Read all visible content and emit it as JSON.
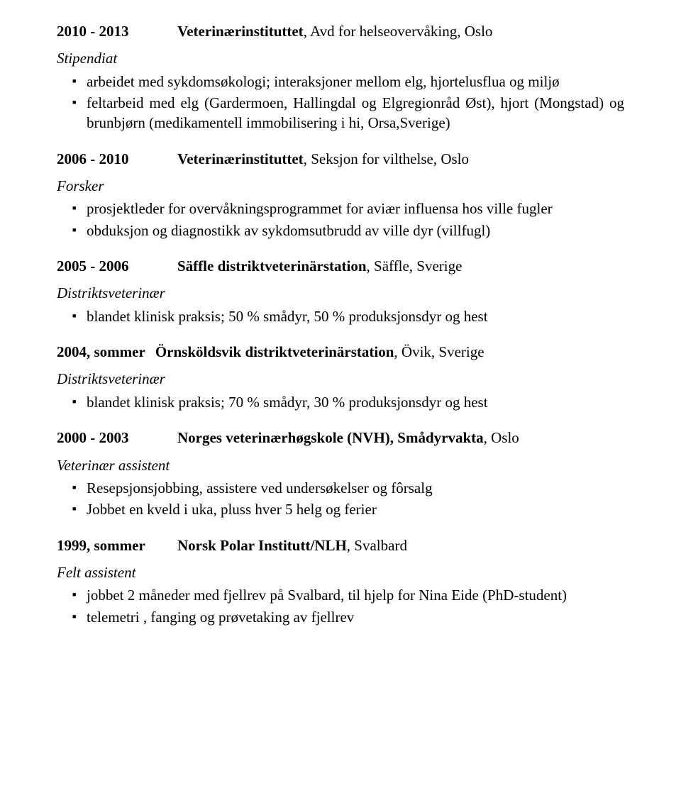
{
  "entries": [
    {
      "date": "2010 - 2013",
      "org_bold": "Veterinærinstituttet",
      "org_rest": ", Avd for helseovervåking, Oslo",
      "role": "Stipendiat",
      "bullets": [
        "arbeidet med sykdomsøkologi; interaksjoner mellom elg, hjortelusflua og miljø",
        "feltarbeid med elg (Gardermoen, Hallingdal og Elgregionråd Øst), hjort (Mongstad) og brunbjørn (medikamentell immobilisering i hi, Orsa,Sverige)"
      ]
    },
    {
      "date": "2006 - 2010",
      "org_bold": "Veterinærinstituttet",
      "org_rest": ", Seksjon for vilthelse, Oslo",
      "role": "Forsker",
      "bullets": [
        "prosjektleder for overvåkningsprogrammet for aviær influensa hos ville fugler",
        "obduksjon og diagnostikk av sykdomsutbrudd av ville dyr (villfugl)"
      ]
    },
    {
      "date": "2005 - 2006",
      "org_bold": "Säffle distriktveterinärstation",
      "org_rest": ", Säffle, Sverige",
      "role": "Distriktsveterinær",
      "bullets": [
        "blandet klinisk praksis; 50 % smådyr, 50 % produksjonsdyr og hest"
      ]
    },
    {
      "date": "2004, sommer",
      "org_bold": "Örnsköldsvik distriktveterinärstation",
      "org_rest": ", Övik, Sverige",
      "role": "Distriktsveterinær",
      "bullets": [
        "blandet klinisk praksis; 70 % smådyr, 30 % produksjonsdyr og hest"
      ]
    },
    {
      "date": "2000 - 2003",
      "org_bold": "Norges veterinærhøgskole (NVH), Smådyrvakta",
      "org_rest": ", Oslo",
      "role": "Veterinær assistent",
      "bullets": [
        "Resepsjonsjobbing, assistere ved undersøkelser og fôrsalg",
        "Jobbet en kveld i uka, pluss hver 5 helg og ferier"
      ]
    },
    {
      "date": "1999, sommer",
      "org_bold": "Norsk Polar Institutt/NLH",
      "org_rest": ", Svalbard",
      "role": "Felt assistent",
      "bullets": [
        "jobbet 2 måneder med fjellrev på Svalbard, til hjelp for Nina Eide (PhD-student)",
        "telemetri , fanging og prøvetaking av fjellrev"
      ]
    }
  ]
}
